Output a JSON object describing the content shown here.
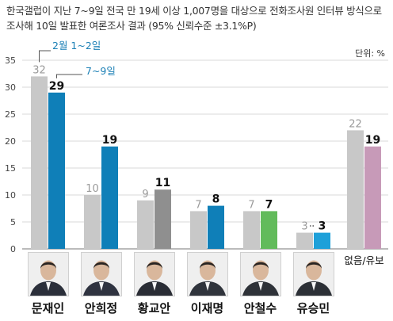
{
  "header": {
    "line1": "한국갤럽이 지난 7~9일 전국 만 19세 이상 1,007명을 대상으로 전화조사원 인터뷰 방식으로",
    "line2": "조사해 10일 발표한 여론조사 결과 (95% 신뢰수준 ±3.1%P)"
  },
  "chart_data": {
    "type": "bar",
    "unit": "단위: %",
    "ylim": [
      0,
      35
    ],
    "yticks": [
      0,
      5,
      10,
      15,
      20,
      25,
      30,
      35
    ],
    "grid": true,
    "series": [
      {
        "name": "2월 1~2일",
        "color": "#c8c8c8"
      },
      {
        "name": "7~9일",
        "color": "mixed"
      }
    ],
    "categories": [
      {
        "name": "문재인",
        "feb": 32,
        "jul": 29,
        "jul_color": "#0f7fb8",
        "photo": true
      },
      {
        "name": "안희정",
        "feb": 10,
        "jul": 19,
        "jul_color": "#0f7fb8",
        "photo": true
      },
      {
        "name": "황교안",
        "feb": 9,
        "jul": 11,
        "jul_color": "#8f8f8f",
        "photo": true
      },
      {
        "name": "이재명",
        "feb": 7,
        "jul": 8,
        "jul_color": "#0f7fb8",
        "photo": true
      },
      {
        "name": "안철수",
        "feb": 7,
        "jul": 7,
        "jul_color": "#62bb5b",
        "photo": true
      },
      {
        "name": "유승민",
        "feb": 3,
        "jul": 3,
        "jul_color": "#1ea0d9",
        "photo": true
      },
      {
        "name": "없음/유보",
        "feb": 22,
        "jul": 19,
        "jul_color": "#c79ab8",
        "photo": false
      }
    ],
    "colors": {
      "feb": "#c8c8c8",
      "legend_line": "#555555",
      "accent": "#1a7fb5"
    }
  }
}
